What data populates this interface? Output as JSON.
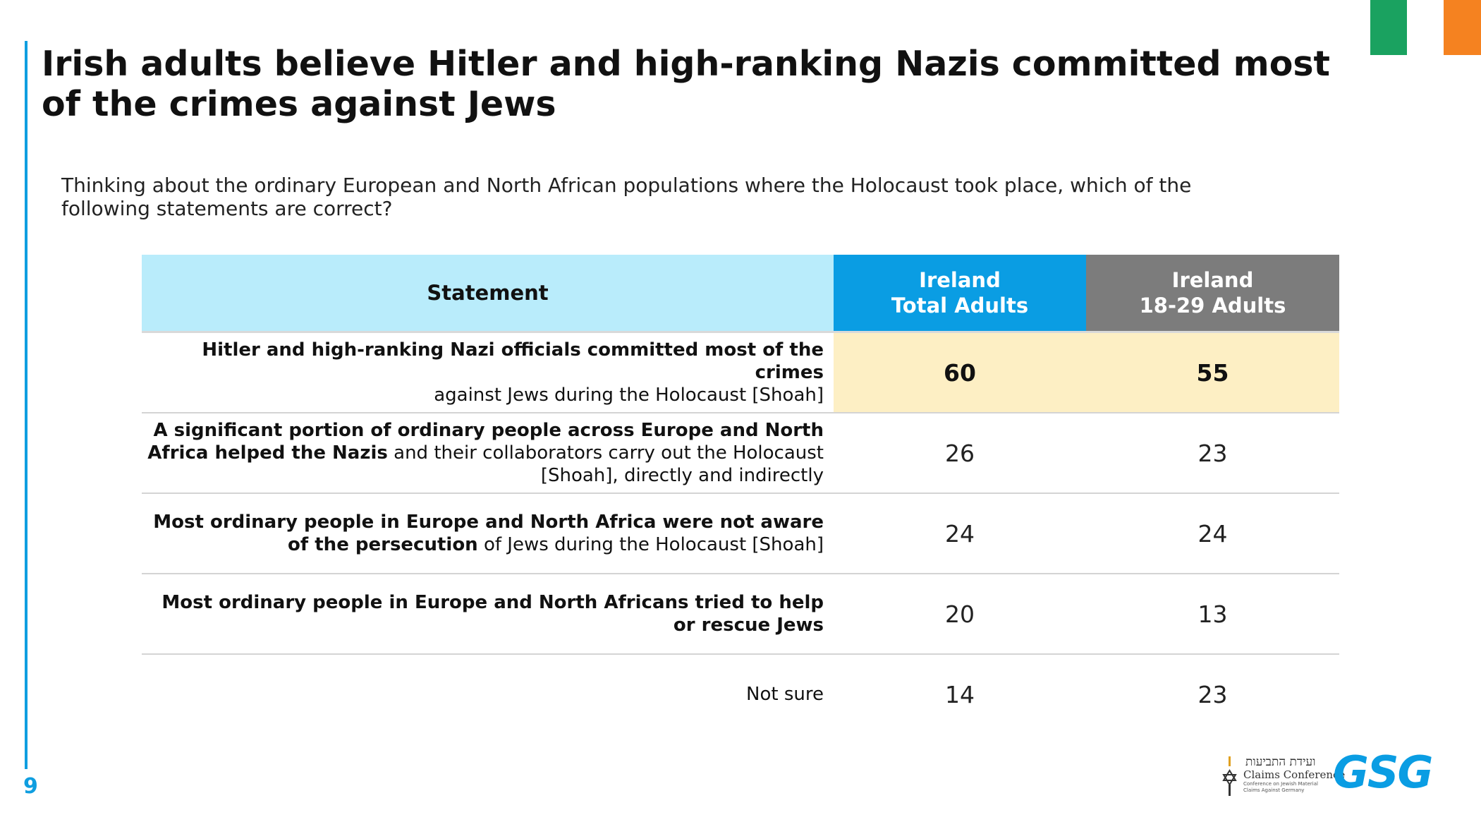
{
  "title": "Irish adults believe Hitler and high-ranking Nazis committed most of the crimes against Jews",
  "question": "Thinking about the ordinary European and North African populations where the Holocaust took place, which of the following statements are correct?",
  "table": {
    "headers": {
      "statement": "Statement",
      "col1_line1": "Ireland",
      "col1_line2": "Total Adults",
      "col2_line1": "Ireland",
      "col2_line2": "18-29 Adults"
    },
    "rows": [
      {
        "bold1": "Hitler and high-ranking Nazi officials committed most of the crimes",
        "normal1": "against Jews during the Holocaust [Shoah]",
        "total": "60",
        "young": "55"
      },
      {
        "bold1": "A significant portion of ordinary people across Europe and North Africa helped the Nazis",
        "normal1": "and their collaborators carry out the Holocaust [Shoah], directly and indirectly",
        "total": "26",
        "young": "23"
      },
      {
        "bold1": "Most ordinary people in Europe and North Africa were not aware of the persecution",
        "normal1": "of Jews during the Holocaust [Shoah]",
        "total": "24",
        "young": "24"
      },
      {
        "bold1": "Most ordinary people in Europe and North Africans tried to help or rescue Jews",
        "total": "20",
        "young": "13"
      },
      {
        "normal1": "Not sure",
        "total": "14",
        "young": "23"
      }
    ]
  },
  "page_number": "9",
  "logos": {
    "claims_conference_hebrew": "ועידת התביעות",
    "claims_conference_name": "Claims Conference",
    "claims_conference_sub": "Conference on Jewish Material Claims Against Germany",
    "gsg": "GSG"
  },
  "colors": {
    "accent_blue": "#0a9de3",
    "header_light_blue": "#b9ecfb",
    "header_gray": "#7c7c7c",
    "highlight_yellow": "#fdefc4",
    "flag_green": "#1aa260",
    "flag_orange": "#f58220"
  }
}
